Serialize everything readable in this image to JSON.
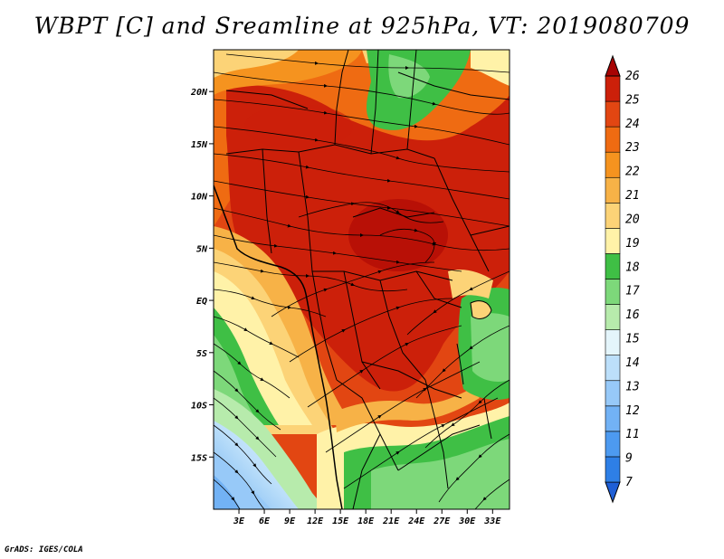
{
  "title": "WBPT [C] and Sreamline at 925hPa, VT: 2019080709",
  "credit": "GrADS: IGES/COLA",
  "map": {
    "variable": "Wet-bulb potential temperature",
    "level": "925hPa",
    "lon_range": [
      0,
      35
    ],
    "lat_range": [
      -20,
      24
    ],
    "lat_ticks": [
      {
        "value": 20,
        "label": "20N"
      },
      {
        "value": 15,
        "label": "15N"
      },
      {
        "value": 10,
        "label": "10N"
      },
      {
        "value": 5,
        "label": "5N"
      },
      {
        "value": 0,
        "label": "EQ"
      },
      {
        "value": -5,
        "label": "5S"
      },
      {
        "value": -10,
        "label": "10S"
      },
      {
        "value": -15,
        "label": "15S"
      }
    ],
    "lon_ticks": [
      {
        "value": 3,
        "label": "3E"
      },
      {
        "value": 6,
        "label": "6E"
      },
      {
        "value": 9,
        "label": "9E"
      },
      {
        "value": 12,
        "label": "12E"
      },
      {
        "value": 15,
        "label": "15E"
      },
      {
        "value": 18,
        "label": "18E"
      },
      {
        "value": 21,
        "label": "21E"
      },
      {
        "value": 24,
        "label": "24E"
      },
      {
        "value": 27,
        "label": "27E"
      },
      {
        "value": 30,
        "label": "30E"
      },
      {
        "value": 33,
        "label": "33E"
      }
    ]
  },
  "colorbar": {
    "levels": [
      "7",
      "9",
      "11",
      "12",
      "13",
      "14",
      "15",
      "16",
      "17",
      "18",
      "19",
      "20",
      "21",
      "22",
      "23",
      "24",
      "25",
      "26"
    ],
    "colors": [
      "#1f5fd6",
      "#2e7fe6",
      "#4d9af0",
      "#72b2f5",
      "#97c9f8",
      "#bcdffa",
      "#e4f5fb",
      "#b7ebac",
      "#7dd87a",
      "#3fbf45",
      "#fff2a8",
      "#fcd377",
      "#f7b247",
      "#f5931f",
      "#ef6b12",
      "#e24612",
      "#cc200a",
      "#a70404"
    ]
  }
}
